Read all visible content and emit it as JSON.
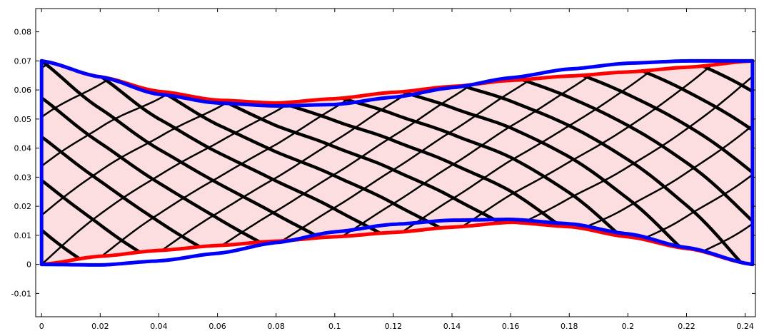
{
  "chart_data": {
    "type": "line",
    "title": "",
    "xlabel": "",
    "ylabel": "",
    "xlim": [
      -0.002,
      0.2435
    ],
    "ylim": [
      -0.018,
      0.088
    ],
    "xticks": [
      0,
      0.02,
      0.04,
      0.06,
      0.08,
      0.1,
      0.12,
      0.14,
      0.16,
      0.18,
      0.2,
      0.22,
      0.24
    ],
    "xtick_labels": [
      "0",
      "0.02",
      "0.04",
      "0.06",
      "0.08",
      "0.1",
      "0.12",
      "0.14",
      "0.16",
      "0.18",
      "0.2",
      "0.22",
      "0.24"
    ],
    "yticks": [
      -0.01,
      0,
      0.01,
      0.02,
      0.03,
      0.04,
      0.05,
      0.06,
      0.07,
      0.08
    ],
    "ytick_labels": [
      "-0.01",
      "0",
      "0.01",
      "0.02",
      "0.03",
      "0.04",
      "0.05",
      "0.06",
      "0.07",
      "0.08"
    ],
    "grid": false,
    "legend": "none",
    "region_fill_color": "#fcdde0",
    "series": [
      {
        "role": "red-top-boundary",
        "color": "#ff0000",
        "x": [
          0,
          0.02,
          0.04,
          0.06,
          0.08,
          0.1,
          0.12,
          0.14,
          0.16,
          0.18,
          0.2,
          0.22,
          0.2425
        ],
        "y": [
          0.07,
          0.0645,
          0.0595,
          0.0565,
          0.0555,
          0.057,
          0.0592,
          0.0612,
          0.0633,
          0.0648,
          0.0662,
          0.0678,
          0.07
        ]
      },
      {
        "role": "red-bottom-boundary",
        "color": "#ff0000",
        "x": [
          0,
          0.02,
          0.04,
          0.06,
          0.08,
          0.1,
          0.12,
          0.14,
          0.16,
          0.18,
          0.2,
          0.22,
          0.2425
        ],
        "y": [
          0,
          0.0028,
          0.0048,
          0.0065,
          0.008,
          0.0095,
          0.011,
          0.0128,
          0.0145,
          0.013,
          0.0095,
          0.0055,
          0
        ]
      },
      {
        "role": "blue-top-boundary",
        "color": "#0000ff",
        "x": [
          0,
          0.02,
          0.04,
          0.06,
          0.08,
          0.1,
          0.12,
          0.14,
          0.16,
          0.18,
          0.2,
          0.22,
          0.2425
        ],
        "y": [
          0.07,
          0.0645,
          0.0585,
          0.0555,
          0.0545,
          0.055,
          0.0575,
          0.0608,
          0.0642,
          0.0672,
          0.0692,
          0.07,
          0.07
        ]
      },
      {
        "role": "blue-bottom-boundary",
        "color": "#0000ff",
        "x": [
          0,
          0.02,
          0.04,
          0.06,
          0.08,
          0.1,
          0.12,
          0.14,
          0.16,
          0.18,
          0.2,
          0.22,
          0.2425
        ],
        "y": [
          0,
          -0.0002,
          0.0012,
          0.0038,
          0.0075,
          0.0112,
          0.0138,
          0.0152,
          0.0155,
          0.014,
          0.0105,
          0.0058,
          0
        ]
      }
    ]
  }
}
